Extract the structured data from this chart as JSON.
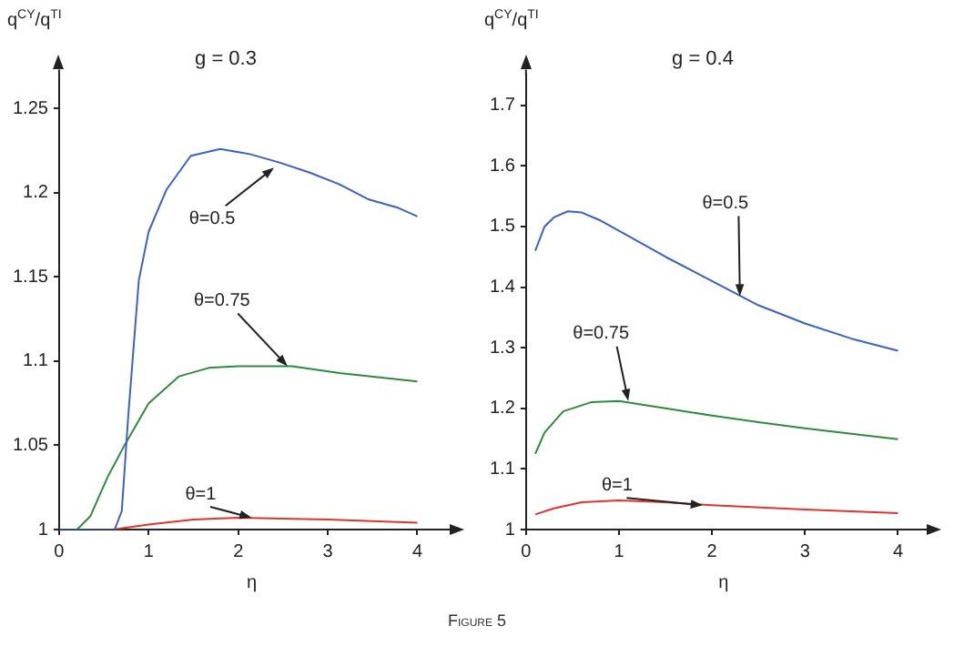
{
  "chart_data": [
    {
      "type": "line",
      "title": "g = 0.3",
      "xlabel": "η",
      "ylabel": "q$^{CY}$/q$^{TI}$",
      "xlim": [
        0,
        4.3
      ],
      "ylim": [
        1,
        1.27
      ],
      "xticks": [
        0,
        1,
        2,
        3,
        4
      ],
      "yticks": [
        1,
        1.05,
        1.1,
        1.15,
        1.2,
        1.25
      ],
      "grid": false,
      "legend": false,
      "marker": "none",
      "series": [
        {
          "color": "#3a62c4",
          "x": [
            0,
            0.62,
            0.7,
            0.77,
            0.89,
            1.0,
            1.2,
            1.47,
            1.8,
            2.13,
            2.46,
            2.8,
            3.13,
            3.46,
            3.79,
            4.0
          ],
          "values": [
            1,
            1,
            1.011,
            1.066,
            1.148,
            1.177,
            1.202,
            1.222,
            1.226,
            1.223,
            1.218,
            1.212,
            1.205,
            1.196,
            1.191,
            1.186
          ]
        },
        {
          "color": "#2e8b3e",
          "x": [
            0,
            0.2,
            0.35,
            0.54,
            0.74,
            1.0,
            1.34,
            1.67,
            2.0,
            2.6,
            3.13,
            4.0
          ],
          "values": [
            1,
            1,
            1.008,
            1.031,
            1.051,
            1.075,
            1.091,
            1.096,
            1.097,
            1.097,
            1.093,
            1.088
          ]
        },
        {
          "color": "#e0342c",
          "x": [
            0,
            0.6,
            1.0,
            1.5,
            2.0,
            3.0,
            4.0
          ],
          "values": [
            1,
            1,
            1.003,
            1.006,
            1.007,
            1.006,
            1.004
          ]
        }
      ],
      "annotations": [
        {
          "text": "θ=0.5",
          "x": 2.4,
          "y": 1.215
        },
        {
          "text": "θ=0.75",
          "x": 2.55,
          "y": 1.097
        },
        {
          "text": "θ=1",
          "x": 2.15,
          "y": 1.007
        }
      ]
    },
    {
      "type": "line",
      "title": "g = 0.4",
      "xlabel": "η",
      "ylabel": "q$^{CY}$/q$^{TI}$",
      "xlim": [
        0,
        4.25
      ],
      "ylim": [
        1,
        1.75
      ],
      "xticks": [
        0,
        1,
        2,
        3,
        4
      ],
      "yticks": [
        1,
        1.1,
        1.2,
        1.3,
        1.4,
        1.5,
        1.6,
        1.7
      ],
      "grid": false,
      "legend": false,
      "marker": "none",
      "series": [
        {
          "color": "#3a62c4",
          "x": [
            0.1,
            0.2,
            0.3,
            0.45,
            0.6,
            0.8,
            1.0,
            1.5,
            2.0,
            2.5,
            3.0,
            3.5,
            4.0
          ],
          "values": [
            1.46,
            1.5,
            1.515,
            1.525,
            1.523,
            1.51,
            1.493,
            1.45,
            1.41,
            1.37,
            1.34,
            1.315,
            1.295
          ]
        },
        {
          "color": "#2e8b3e",
          "x": [
            0.1,
            0.2,
            0.4,
            0.7,
            1.0,
            1.5,
            2.0,
            2.5,
            3.0,
            3.5,
            4.0
          ],
          "values": [
            1.125,
            1.16,
            1.195,
            1.21,
            1.212,
            1.2,
            1.188,
            1.177,
            1.167,
            1.158,
            1.149
          ]
        },
        {
          "color": "#e0342c",
          "x": [
            0.1,
            0.3,
            0.6,
            1.0,
            1.5,
            2.0,
            3.0,
            4.0
          ],
          "values": [
            1.025,
            1.035,
            1.045,
            1.048,
            1.045,
            1.04,
            1.033,
            1.027
          ]
        }
      ],
      "annotations": [
        {
          "text": "θ=0.5",
          "x": 2.3,
          "y": 1.385
        },
        {
          "text": "θ=0.75",
          "x": 1.1,
          "y": 1.212
        },
        {
          "text": "θ=1",
          "x": 1.9,
          "y": 1.04
        },
        "Figure 5"
      ]
    }
  ]
}
